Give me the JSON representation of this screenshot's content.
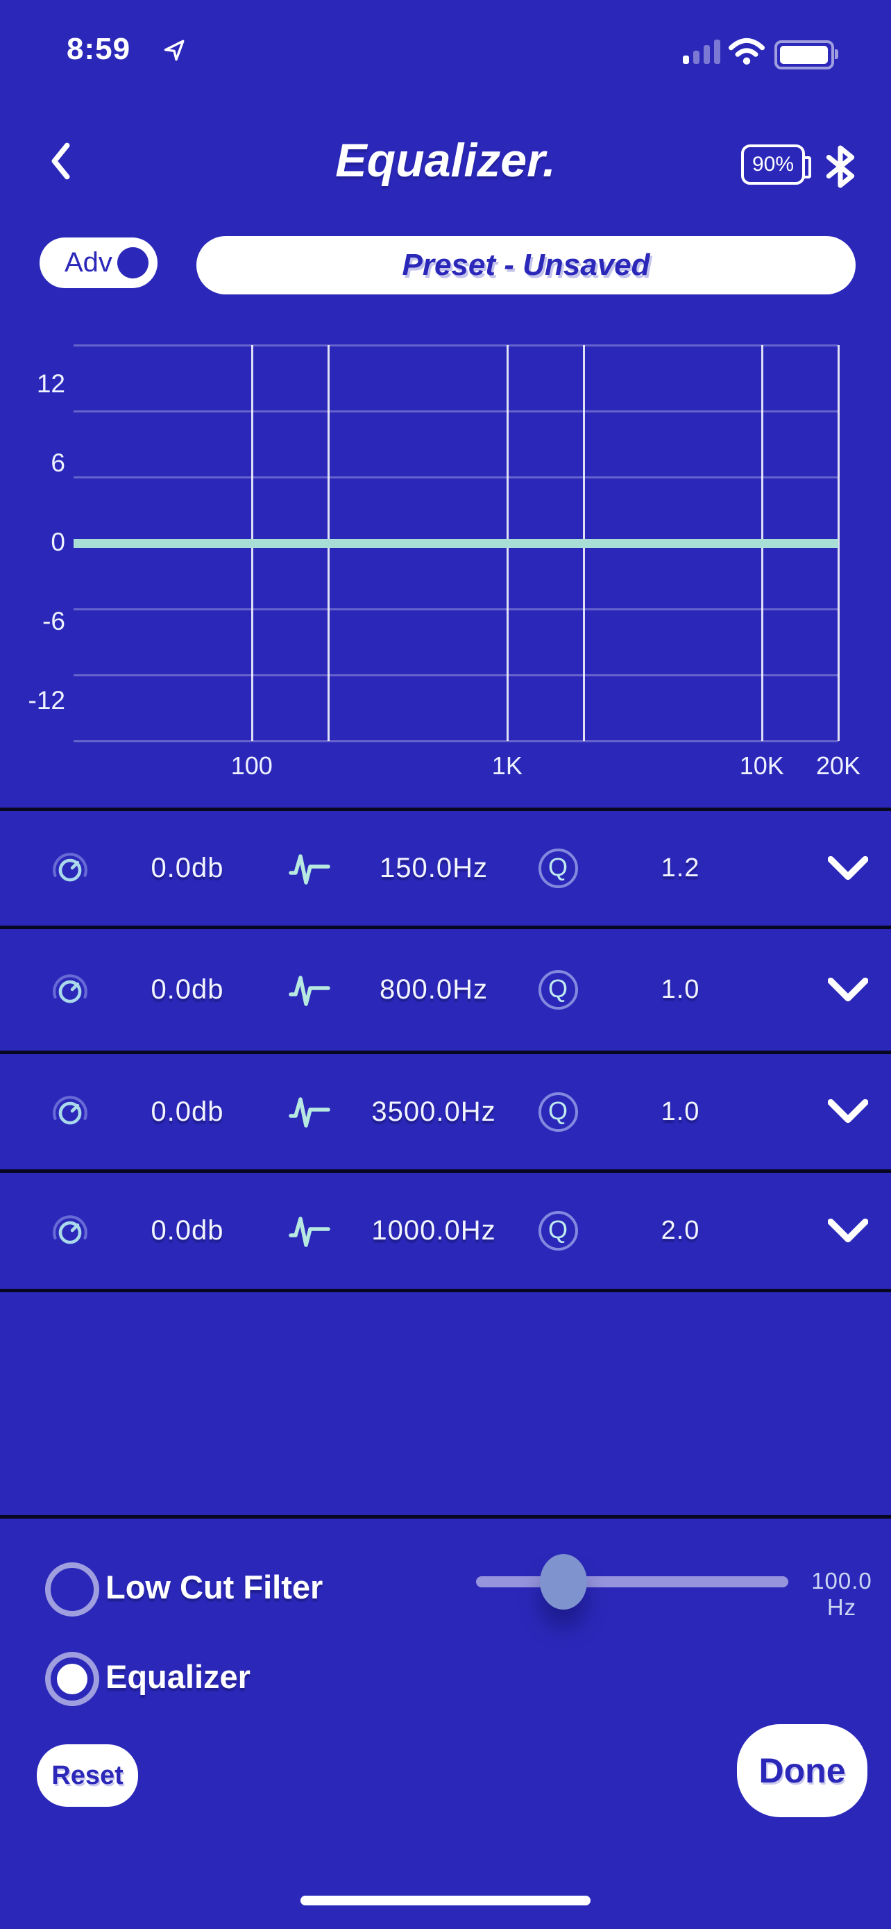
{
  "colors": {
    "background": "#2b28b9",
    "accent_teal": "#a9ded6",
    "icon_teal": "#b7e9e1",
    "divider": "#07071f",
    "pill_text_blue": "#2b28b9",
    "slider_handle": "#7f93cf"
  },
  "status_bar": {
    "time": "8:59",
    "signal_icon": "signal-bars-1-of-4",
    "wifi_icon": "wifi-full",
    "battery_icon": "battery-near-full"
  },
  "header": {
    "back_icon": "chevron-left",
    "title": "Equalizer.",
    "battery_badge": "90%",
    "bluetooth_icon": "bluetooth"
  },
  "toolbar": {
    "adv_toggle": {
      "label": "Adv",
      "state": "on"
    },
    "preset_button": {
      "label": "Preset - Unsaved"
    }
  },
  "graph": {
    "y_ticks": [
      {
        "label": "12",
        "percent": 10
      },
      {
        "label": "6",
        "percent": 30
      },
      {
        "label": "0",
        "percent": 50
      },
      {
        "label": "-6",
        "percent": 70
      },
      {
        "label": "-12",
        "percent": 90
      }
    ],
    "h_gridlines_percent": [
      0,
      16.7,
      33.3,
      50,
      66.7,
      83.3,
      100
    ],
    "v_gridlines_percent": [
      23.3,
      33.3,
      56.7,
      66.7,
      90,
      100
    ],
    "x_ticks": [
      {
        "label": "100",
        "percent": 23.3
      },
      {
        "label": "1K",
        "percent": 56.7
      },
      {
        "label": "10K",
        "percent": 90
      },
      {
        "label": "20K",
        "percent": 100
      }
    ],
    "curve_percent": 50
  },
  "chart_data": {
    "type": "line",
    "x_scale": "log",
    "x_range_hz": [
      20,
      20000
    ],
    "x_tick_labels": [
      "100",
      "1K",
      "10K",
      "20K"
    ],
    "y_unit": "dB",
    "y_tick_labels": [
      "12",
      "6",
      "0",
      "-6",
      "-12"
    ],
    "ylim": [
      -15,
      15
    ],
    "grid": "on",
    "series": [
      {
        "name": "eq-response",
        "x_hz": [
          20,
          20000
        ],
        "y_db": [
          0,
          0
        ]
      }
    ]
  },
  "bands": [
    {
      "gain": "0.0db",
      "frequency": "150.0Hz",
      "q": "1.2"
    },
    {
      "gain": "0.0db",
      "frequency": "800.0Hz",
      "q": "1.0"
    },
    {
      "gain": "0.0db",
      "frequency": "3500.0Hz",
      "q": "1.0"
    },
    {
      "gain": "0.0db",
      "frequency": "1000.0Hz",
      "q": "2.0"
    }
  ],
  "filters": {
    "low_cut": {
      "label": "Low Cut Filter",
      "selected": false,
      "slider": {
        "value_label": "100.0 Hz",
        "position_percent": 28
      }
    },
    "equalizer": {
      "label": "Equalizer",
      "selected": true
    }
  },
  "footer": {
    "reset_label": "Reset",
    "done_label": "Done"
  },
  "icons": {
    "q_glyph": "Q"
  }
}
